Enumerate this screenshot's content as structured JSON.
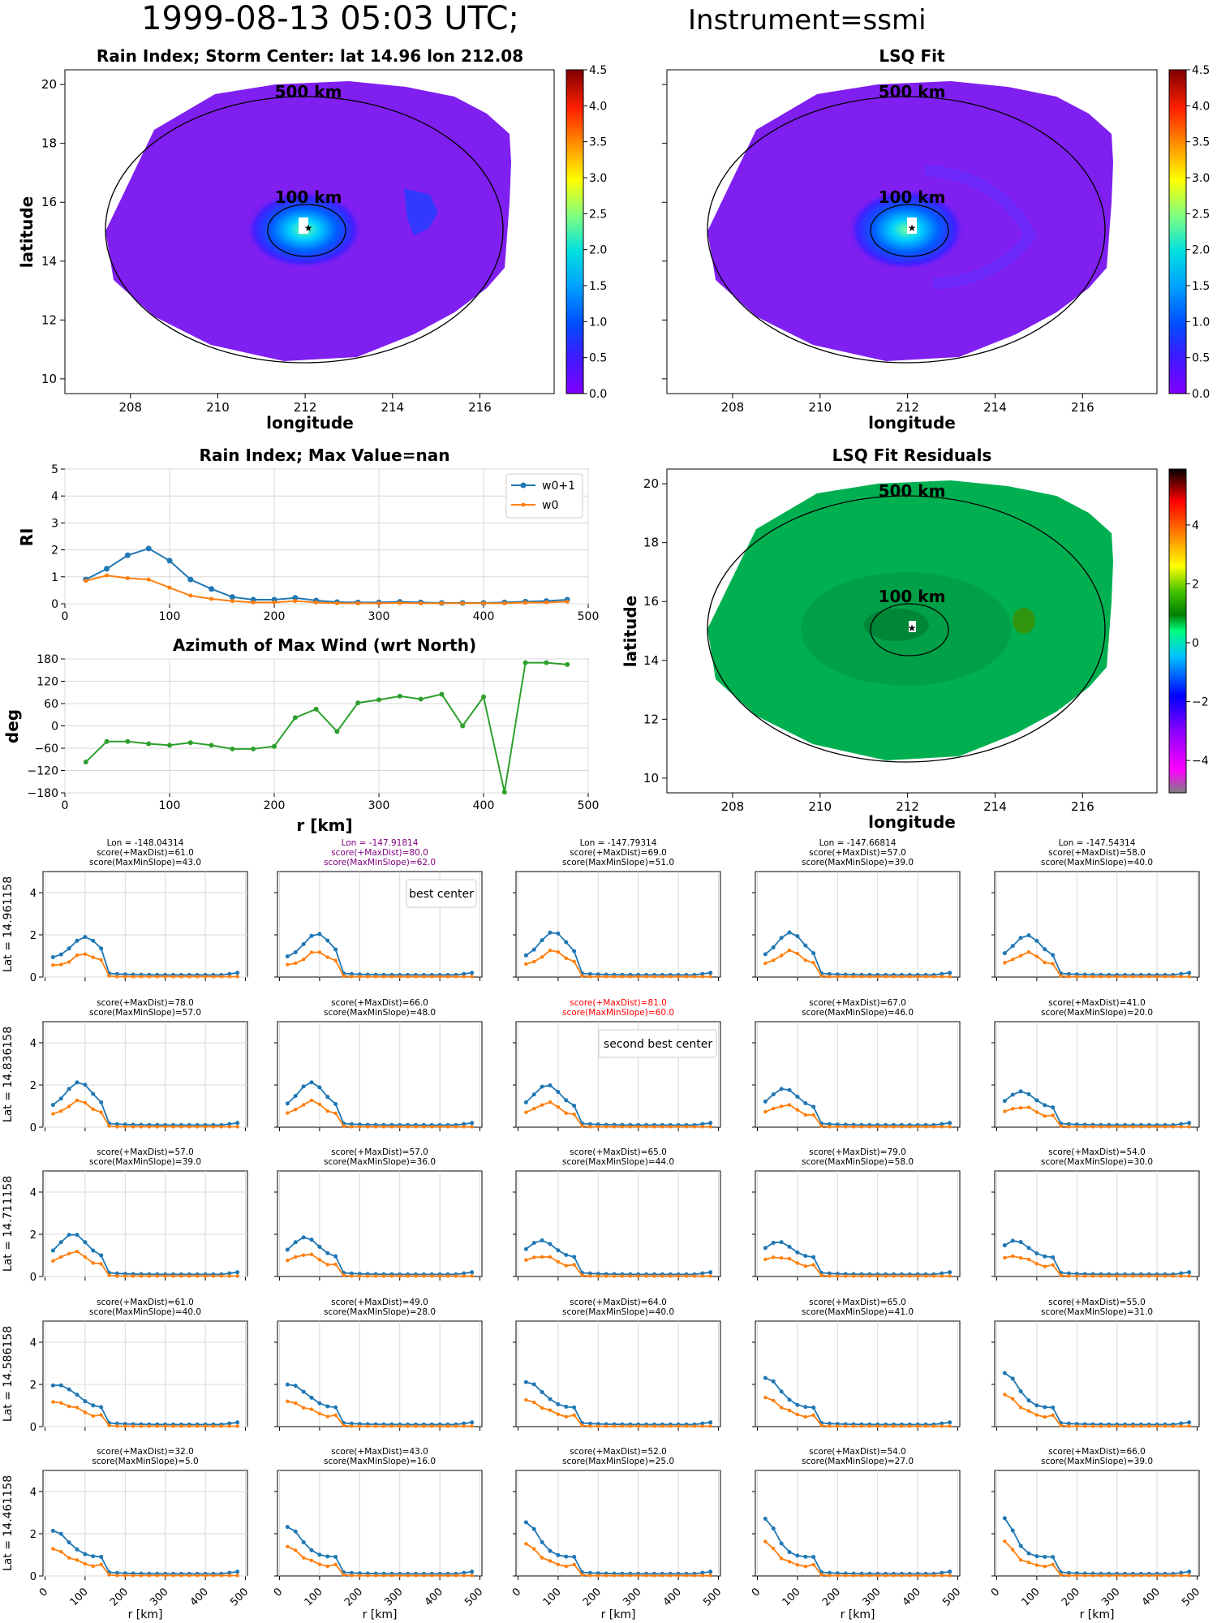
{
  "header": {
    "title_main": "1999-08-13 05:03 UTC;",
    "title_instr": "Instrument=ssmi"
  },
  "colors": {
    "blue": "#1f77b4",
    "orange": "#ff7f0e",
    "green": "#2ca02c",
    "purple": "#800080",
    "red": "#ff0000",
    "field": "#7f1ff0",
    "resid": "#00b050"
  },
  "maps": [
    {
      "title": "Rain Index; Storm Center: lat 14.96 lon 212.08",
      "xlabel": "longitude",
      "ylabel": "latitude",
      "xticks": [
        "208",
        "210",
        "212",
        "214",
        "216"
      ],
      "yticks": [
        "10",
        "12",
        "14",
        "16",
        "18",
        "20"
      ],
      "ring_labels": [
        "500 km",
        "100 km"
      ],
      "colorbar": [
        "0.0",
        "0.5",
        "1.0",
        "1.5",
        "2.0",
        "2.5",
        "3.0",
        "3.5",
        "4.0",
        "4.5"
      ]
    },
    {
      "title": "LSQ Fit",
      "xlabel": "longitude",
      "xticks": [
        "208",
        "210",
        "212",
        "214",
        "216"
      ],
      "ring_labels": [
        "500 km",
        "100 km"
      ],
      "colorbar": [
        "0.0",
        "0.5",
        "1.0",
        "1.5",
        "2.0",
        "2.5",
        "3.0",
        "3.5",
        "4.0",
        "4.5"
      ]
    },
    {
      "title": "LSQ Fit Residuals",
      "xlabel": "longitude",
      "ylabel": "latitude",
      "xticks": [
        "208",
        "210",
        "212",
        "214",
        "216"
      ],
      "yticks": [
        "10",
        "12",
        "14",
        "16",
        "18",
        "20"
      ],
      "ring_labels": [
        "500 km",
        "100 km"
      ],
      "colorbar": [
        "−4",
        "−2",
        "0",
        "2",
        "4"
      ]
    }
  ],
  "chart_data": [
    {
      "type": "line",
      "title": "Rain Index; Max Value=nan",
      "ylabel": "RI",
      "xlim": [
        0,
        500
      ],
      "ylim": [
        0,
        5
      ],
      "xticks": [
        "0",
        "100",
        "200",
        "300",
        "400",
        "500"
      ],
      "yticks": [
        "0",
        "1",
        "2",
        "3",
        "4",
        "5"
      ],
      "legend_position": "top-right",
      "x": [
        20,
        40,
        60,
        80,
        100,
        120,
        140,
        160,
        180,
        200,
        220,
        240,
        260,
        280,
        300,
        320,
        340,
        360,
        380,
        400,
        420,
        440,
        460,
        480
      ],
      "series": [
        {
          "name": "w0+1",
          "values": [
            0.9,
            1.3,
            1.8,
            2.05,
            1.6,
            0.9,
            0.55,
            0.25,
            0.15,
            0.15,
            0.22,
            0.12,
            0.06,
            0.05,
            0.05,
            0.07,
            0.05,
            0.03,
            0.03,
            0.03,
            0.05,
            0.08,
            0.1,
            0.15
          ]
        },
        {
          "name": "w0",
          "values": [
            0.85,
            1.05,
            0.95,
            0.9,
            0.6,
            0.3,
            0.18,
            0.1,
            0.05,
            0.05,
            0.1,
            0.05,
            0.02,
            0.02,
            0.02,
            0.03,
            0.02,
            0.02,
            0.02,
            0.02,
            0.02,
            0.04,
            0.05,
            0.08
          ]
        }
      ]
    },
    {
      "type": "line",
      "title": "Azimuth of Max Wind (wrt North)",
      "xlabel": "r [km]",
      "ylabel": "deg",
      "xlim": [
        0,
        500
      ],
      "ylim": [
        -180,
        180
      ],
      "xticks": [
        "0",
        "100",
        "200",
        "300",
        "400",
        "500"
      ],
      "yticks": [
        "−180",
        "−120",
        "−60",
        "0",
        "60",
        "120",
        "180"
      ],
      "x": [
        20,
        40,
        60,
        80,
        100,
        120,
        140,
        160,
        180,
        200,
        220,
        240,
        260,
        280,
        300,
        320,
        340,
        360,
        380,
        400,
        420,
        440,
        460,
        480
      ],
      "values": [
        -97,
        -42,
        -42,
        -48,
        -52,
        -45,
        -52,
        -62,
        -62,
        -55,
        22,
        45,
        -15,
        62,
        70,
        80,
        72,
        85,
        0,
        78,
        -178,
        170,
        170,
        165
      ]
    }
  ],
  "grid": {
    "xlabel": "r [km]",
    "xticks": [
      "0",
      "100",
      "200",
      "300",
      "400",
      "500"
    ],
    "yticks": [
      "0",
      "2",
      "4"
    ],
    "row_labels": [
      "Lat = 14.961158",
      "Lat = 14.836158",
      "Lat = 14.711158",
      "Lat = 14.586158",
      "Lat = 14.461158"
    ],
    "lon_labels": [
      "Lon = -148.04314",
      "Lon = -147.91814",
      "Lon = -147.79314",
      "Lon = -147.66814",
      "Lon = -147.54314"
    ],
    "scores": [
      [
        [
          "61.0",
          "43.0"
        ],
        [
          "80.0",
          "62.0"
        ],
        [
          "69.0",
          "51.0"
        ],
        [
          "57.0",
          "39.0"
        ],
        [
          "58.0",
          "40.0"
        ]
      ],
      [
        [
          "78.0",
          "57.0"
        ],
        [
          "66.0",
          "48.0"
        ],
        [
          "81.0",
          "60.0"
        ],
        [
          "67.0",
          "46.0"
        ],
        [
          "41.0",
          "20.0"
        ]
      ],
      [
        [
          "57.0",
          "39.0"
        ],
        [
          "57.0",
          "36.0"
        ],
        [
          "65.0",
          "44.0"
        ],
        [
          "79.0",
          "58.0"
        ],
        [
          "54.0",
          "30.0"
        ]
      ],
      [
        [
          "61.0",
          "40.0"
        ],
        [
          "49.0",
          "28.0"
        ],
        [
          "64.0",
          "40.0"
        ],
        [
          "65.0",
          "41.0"
        ],
        [
          "55.0",
          "31.0"
        ]
      ],
      [
        [
          "32.0",
          "5.0"
        ],
        [
          "43.0",
          "16.0"
        ],
        [
          "52.0",
          "25.0"
        ],
        [
          "54.0",
          "27.0"
        ],
        [
          "66.0",
          "39.0"
        ]
      ]
    ],
    "score_prefix_a": "score(+MaxDist)=",
    "score_prefix_b": "score(MaxMinSlope)=",
    "best_label": "best center",
    "second_label": "second best center",
    "best_cell": [
      0,
      1
    ],
    "second_cell": [
      1,
      2
    ]
  }
}
